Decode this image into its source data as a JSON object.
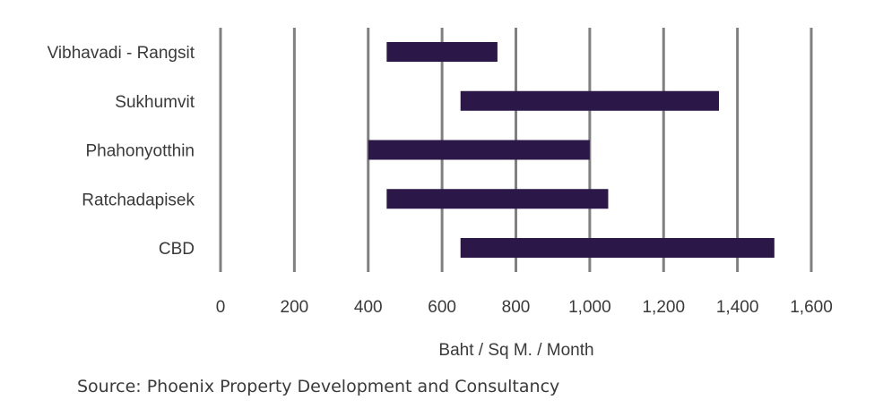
{
  "chart_data": {
    "type": "bar",
    "orientation": "horizontal",
    "bar_style": "floating-range",
    "categories": [
      "Vibhavadi - Rangsit",
      "Sukhumvit",
      "Phahonyotthin",
      "Ratchadapisek",
      "CBD"
    ],
    "series": [
      {
        "ranges": [
          [
            450,
            750
          ],
          [
            650,
            1350
          ],
          [
            400,
            1000
          ],
          [
            450,
            1050
          ],
          [
            650,
            1500
          ]
        ]
      }
    ],
    "xlabel": "Baht / Sq M. / Month",
    "xlim": [
      0,
      1600
    ],
    "x_ticks": [
      0,
      200,
      400,
      600,
      800,
      1000,
      1200,
      1400,
      1600
    ],
    "x_tick_labels": [
      "0",
      "200",
      "400",
      "600",
      "800",
      "1,000",
      "1,200",
      "1,400",
      "1,600"
    ],
    "grid": "vertical",
    "legend": "none",
    "colors": {
      "bar": "#2b1748",
      "grid": "#808080",
      "text": "#3a3a3a"
    }
  },
  "source_text": "Source: Phoenix Property Development and Consultancy"
}
